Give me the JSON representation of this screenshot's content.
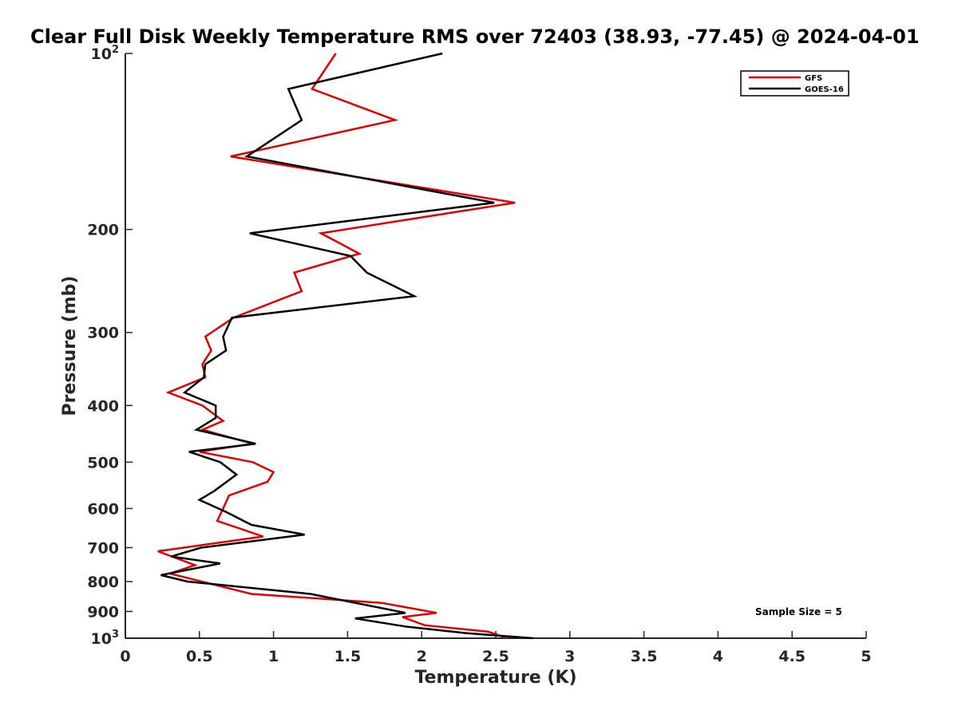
{
  "chart_data": {
    "type": "line",
    "title": "Clear Full Disk Weekly Temperature RMS over 72403 (38.93, -77.45) @ 2024-04-01",
    "xlabel": "Temperature (K)",
    "ylabel": "Pressure (mb)",
    "xlim": [
      0,
      5
    ],
    "ylim": [
      100,
      1000
    ],
    "y_scale": "log",
    "y_reversed": true,
    "x_ticks": [
      "0",
      "0.5",
      "1",
      "1.5",
      "2",
      "2.5",
      "3",
      "3.5",
      "4",
      "4.5",
      "5"
    ],
    "y_ticks": [
      {
        "value": 100,
        "label": "10",
        "sup": "2"
      },
      {
        "value": 200,
        "label": "200"
      },
      {
        "value": 300,
        "label": "300"
      },
      {
        "value": 400,
        "label": "400"
      },
      {
        "value": 500,
        "label": "500"
      },
      {
        "value": 600,
        "label": "600"
      },
      {
        "value": 700,
        "label": "700"
      },
      {
        "value": 800,
        "label": "800"
      },
      {
        "value": 900,
        "label": "900"
      },
      {
        "value": 1000,
        "label": "10",
        "sup": "3"
      }
    ],
    "grid": false,
    "legend_position": "top-right",
    "annotation": "Sample Size = 5",
    "series": [
      {
        "name": "GFS",
        "color": "#e00000",
        "points": [
          [
            1.42,
            100
          ],
          [
            1.26,
            115
          ],
          [
            1.82,
            130
          ],
          [
            0.71,
            150
          ],
          [
            2.63,
            180
          ],
          [
            1.32,
            203
          ],
          [
            1.58,
            220
          ],
          [
            1.14,
            237
          ],
          [
            1.19,
            255
          ],
          [
            0.73,
            283
          ],
          [
            0.54,
            305
          ],
          [
            0.58,
            322
          ],
          [
            0.52,
            340
          ],
          [
            0.54,
            358
          ],
          [
            0.29,
            380
          ],
          [
            0.52,
            400
          ],
          [
            0.66,
            425
          ],
          [
            0.52,
            440
          ],
          [
            0.86,
            465
          ],
          [
            0.5,
            480
          ],
          [
            0.86,
            500
          ],
          [
            1.0,
            520
          ],
          [
            0.96,
            540
          ],
          [
            0.7,
            570
          ],
          [
            0.66,
            600
          ],
          [
            0.62,
            630
          ],
          [
            0.93,
            670
          ],
          [
            0.22,
            710
          ],
          [
            0.47,
            750
          ],
          [
            0.3,
            775
          ],
          [
            0.85,
            840
          ],
          [
            1.73,
            870
          ],
          [
            2.1,
            905
          ],
          [
            1.87,
            920
          ],
          [
            2.02,
            950
          ],
          [
            2.45,
            975
          ],
          [
            2.58,
            1000
          ]
        ]
      },
      {
        "name": "GOES-16",
        "color": "#000000",
        "points": [
          [
            2.14,
            100
          ],
          [
            1.1,
            115
          ],
          [
            1.19,
            130
          ],
          [
            0.82,
            150
          ],
          [
            2.49,
            180
          ],
          [
            0.84,
            203
          ],
          [
            1.52,
            222
          ],
          [
            1.63,
            237
          ],
          [
            1.95,
            260
          ],
          [
            0.72,
            283
          ],
          [
            0.66,
            305
          ],
          [
            0.68,
            322
          ],
          [
            0.54,
            340
          ],
          [
            0.53,
            358
          ],
          [
            0.4,
            380
          ],
          [
            0.61,
            400
          ],
          [
            0.61,
            420
          ],
          [
            0.48,
            440
          ],
          [
            0.88,
            465
          ],
          [
            0.43,
            480
          ],
          [
            0.64,
            500
          ],
          [
            0.75,
            525
          ],
          [
            0.6,
            560
          ],
          [
            0.5,
            580
          ],
          [
            0.69,
            610
          ],
          [
            0.85,
            640
          ],
          [
            1.21,
            665
          ],
          [
            0.51,
            700
          ],
          [
            0.31,
            725
          ],
          [
            0.64,
            745
          ],
          [
            0.24,
            780
          ],
          [
            0.42,
            800
          ],
          [
            1.25,
            840
          ],
          [
            1.65,
            880
          ],
          [
            1.89,
            905
          ],
          [
            1.55,
            925
          ],
          [
            1.89,
            955
          ],
          [
            2.3,
            980
          ],
          [
            2.75,
            1000
          ]
        ]
      }
    ]
  }
}
